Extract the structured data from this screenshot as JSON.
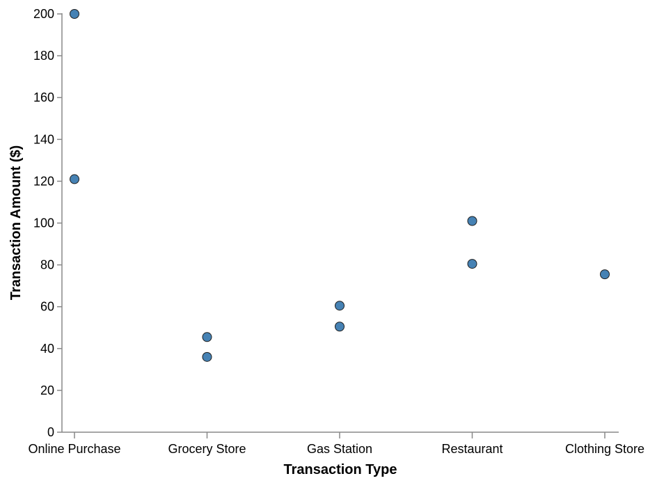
{
  "chart_data": {
    "type": "scatter",
    "title": "",
    "xlabel": "Transaction Type",
    "ylabel": "Transaction Amount ($)",
    "categories": [
      "Online Purchase",
      "Grocery Store",
      "Gas Station",
      "Restaurant",
      "Clothing Store"
    ],
    "points": [
      {
        "x": "Online Purchase",
        "y": 200
      },
      {
        "x": "Online Purchase",
        "y": 121
      },
      {
        "x": "Grocery Store",
        "y": 45.5
      },
      {
        "x": "Grocery Store",
        "y": 36
      },
      {
        "x": "Gas Station",
        "y": 60.5
      },
      {
        "x": "Gas Station",
        "y": 50.5
      },
      {
        "x": "Restaurant",
        "y": 101
      },
      {
        "x": "Restaurant",
        "y": 80.5
      },
      {
        "x": "Clothing Store",
        "y": 75.5
      }
    ],
    "ylim": [
      0,
      200
    ],
    "yticks": [
      0,
      20,
      40,
      60,
      80,
      100,
      120,
      140,
      160,
      180,
      200
    ],
    "grid": false,
    "legend": "none",
    "point_color": "#4682b4",
    "point_stroke": "#1f1f1f",
    "axis_color": "#888888"
  }
}
